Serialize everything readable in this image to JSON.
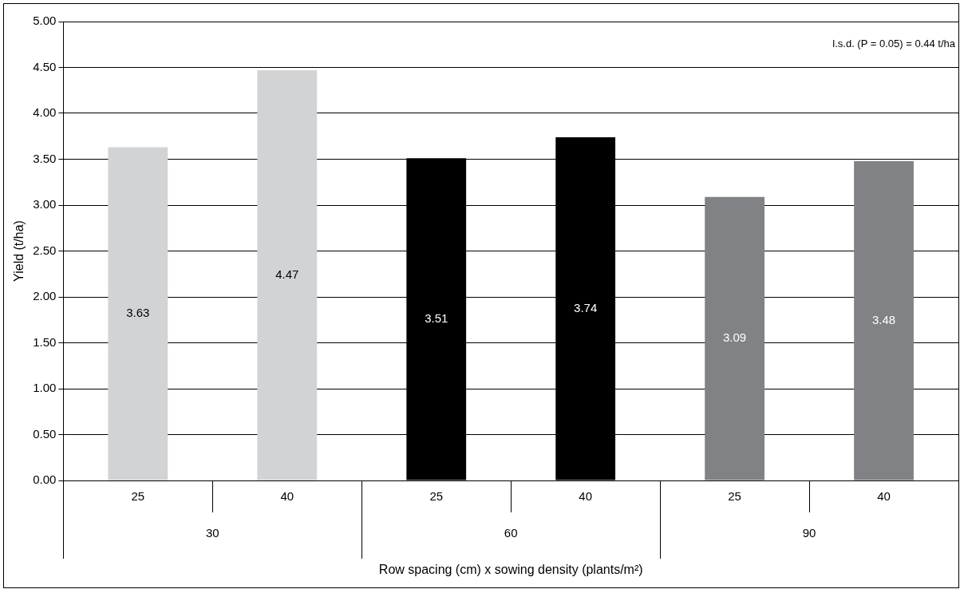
{
  "chart_data": {
    "type": "bar",
    "xlabel": "Row spacing (cm) x sowing density (plants/m²)",
    "ylabel": "Yield (t/ha)",
    "categories": [
      "25",
      "40",
      "25",
      "40",
      "25",
      "40"
    ],
    "values": [
      3.63,
      4.47,
      3.51,
      3.74,
      3.09,
      3.48
    ],
    "colors": [
      "#d1d3d4",
      "#d1d3d4",
      "#000000",
      "#000000",
      "#808285",
      "#808285"
    ],
    "data_labels": true,
    "ylim": [
      0,
      5
    ],
    "yticks": [
      {
        "value": 0,
        "label": "0.00"
      },
      {
        "value": 0.5,
        "label": "0.50"
      },
      {
        "value": 1,
        "label": "1.00"
      },
      {
        "value": 1.5,
        "label": "1.50"
      },
      {
        "value": 2,
        "label": "2.00"
      },
      {
        "value": 2.5,
        "label": "2.50"
      },
      {
        "value": 3,
        "label": "3.00"
      },
      {
        "value": 3.5,
        "label": "3.50"
      },
      {
        "value": 4,
        "label": "4.00"
      },
      {
        "value": 4.5,
        "label": "4.50"
      },
      {
        "value": 5,
        "label": "5.00"
      }
    ],
    "grid": "y",
    "legend": false,
    "annotations": [
      "l.s.d. (P = 0.05) = 0.44 t/ha",
      "30",
      "60",
      "90"
    ]
  }
}
